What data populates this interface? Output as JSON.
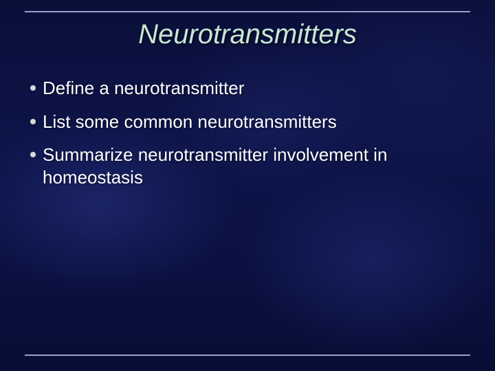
{
  "slide": {
    "title": "Neurotransmitters",
    "bullets": [
      "Define a neurotransmitter",
      "List some common neurotransmitters",
      "Summarize neurotransmitter involvement in homeostasis"
    ]
  },
  "style": {
    "title_color": "#c7e6d4",
    "title_fontsize": 40,
    "title_italic": true,
    "body_color": "#ffffff",
    "body_fontsize": 26,
    "bullet_color": "#d9d9d9",
    "rule_color": "#9aa0c8",
    "background_base": "#0b1242"
  }
}
